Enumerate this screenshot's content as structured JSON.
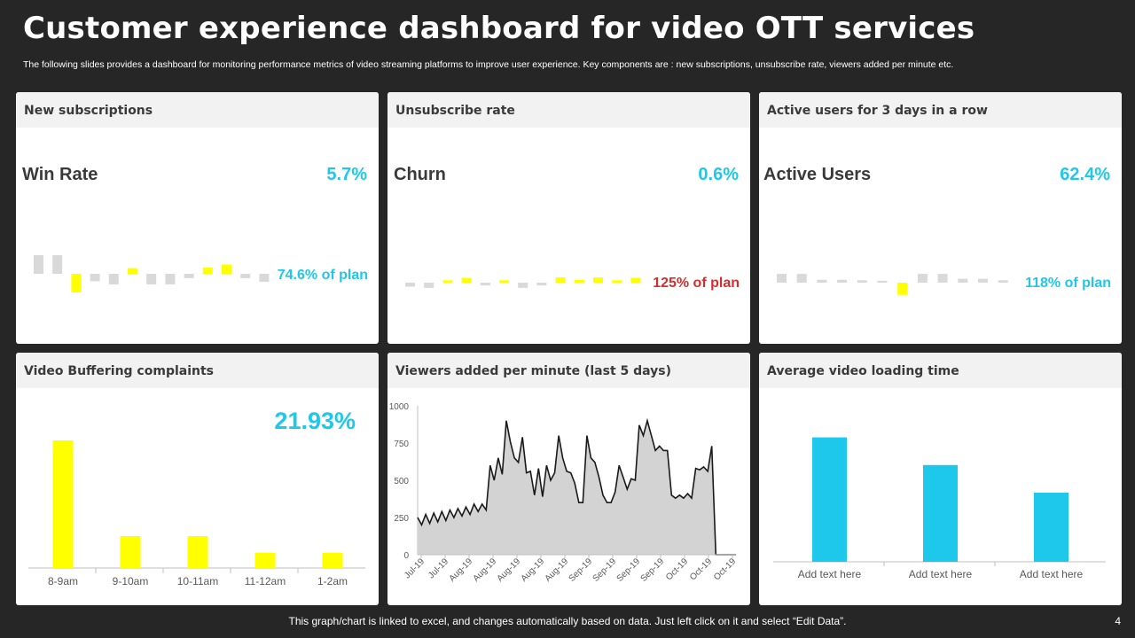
{
  "header": {
    "title": "Customer experience dashboard for video OTT services",
    "subtitle": "The following slides provides a dashboard for monitoring performance metrics of video streaming platforms to improve user experience. Key components are : new subscriptions, unsubscribe rate, viewers added per minute etc."
  },
  "cards": {
    "new_subscriptions": {
      "title": "New subscriptions",
      "kpi_label": "Win Rate",
      "kpi_value": "5.7%",
      "plan_text": "74.6% of plan",
      "plan_color": "#1ec8ea"
    },
    "unsubscribe_rate": {
      "title": "Unsubscribe rate",
      "kpi_label": "Churn",
      "kpi_value": "0.6%",
      "plan_text": "125% of plan",
      "plan_color": "#d32f2f"
    },
    "active_users": {
      "title": "Active users for 3 days in a row",
      "kpi_label": "Active Users",
      "kpi_value": "62.4%",
      "plan_text": "118% of plan",
      "plan_color": "#1ec8ea"
    },
    "buffering": {
      "title": "Video Buffering complaints",
      "big_value": "21.93%"
    },
    "viewers": {
      "title": "Viewers added per minute (last 5 days)"
    },
    "loading": {
      "title": "Average video loading time"
    }
  },
  "colors": {
    "accent": "#1ec8ea",
    "yellow": "#ffff00",
    "gray_bar": "#d9d9d9",
    "red": "#d32f2f",
    "area_fill": "#d3d3d3"
  },
  "chart_data": [
    {
      "id": "win_rate_spark",
      "type": "bar",
      "title": "Win Rate",
      "values": [
        3,
        3,
        -3,
        -1.2,
        -1.7,
        0.9,
        -1.7,
        -1.7,
        -0.7,
        1,
        1.5,
        -0.7,
        -1.3
      ],
      "colors": [
        "gray",
        "gray",
        "yellow",
        "gray",
        "gray",
        "yellow",
        "gray",
        "gray",
        "gray",
        "yellow",
        "yellow",
        "gray",
        "gray"
      ]
    },
    {
      "id": "churn_spark",
      "type": "bar",
      "title": "Churn",
      "values": [
        -1,
        -1.3,
        0.6,
        1.2,
        -0.7,
        0.6,
        -1.3,
        -0.7,
        1.3,
        0.7,
        1.3,
        0.6,
        1.2
      ],
      "colors": [
        "gray",
        "gray",
        "yellow",
        "yellow",
        "gray",
        "yellow",
        "gray",
        "gray",
        "yellow",
        "yellow",
        "yellow",
        "yellow",
        "yellow"
      ]
    },
    {
      "id": "active_users_spark",
      "type": "bar",
      "title": "Active Users",
      "values": [
        1.8,
        1.8,
        0.6,
        0.6,
        0.5,
        0.4,
        -2.5,
        1.8,
        1.8,
        0.8,
        0.8,
        0.5
      ],
      "colors": [
        "gray",
        "gray",
        "gray",
        "gray",
        "gray",
        "gray",
        "yellow",
        "gray",
        "gray",
        "gray",
        "gray",
        "gray"
      ]
    },
    {
      "id": "buffering_complaints",
      "type": "bar",
      "title": "Video Buffering complaints",
      "categories": [
        "8-9am",
        "9-10am",
        "10-11am",
        "11-12am",
        "1-2am"
      ],
      "values": [
        100,
        25,
        25,
        12,
        12
      ],
      "ylim": [
        0,
        110
      ]
    },
    {
      "id": "viewers_per_minute",
      "type": "area",
      "title": "Viewers added per minute (last 5 days)",
      "yticks": [
        0,
        250,
        500,
        750,
        1000
      ],
      "ylim": [
        0,
        1000
      ],
      "xticks": [
        "Jul-19",
        "Jul-19",
        "Aug-19",
        "Aug-19",
        "Aug-19",
        "Aug-19",
        "Aug-19",
        "Sep-19",
        "Sep-19",
        "Sep-19",
        "Sep-19",
        "Oct-19",
        "Oct-19",
        "Oct-19"
      ],
      "values": [
        250,
        200,
        270,
        210,
        280,
        220,
        290,
        230,
        300,
        250,
        310,
        260,
        320,
        270,
        340,
        290,
        340,
        300,
        600,
        500,
        650,
        540,
        900,
        760,
        650,
        620,
        790,
        550,
        560,
        400,
        580,
        390,
        600,
        500,
        550,
        800,
        650,
        560,
        550,
        480,
        350,
        350,
        800,
        650,
        620,
        520,
        400,
        350,
        350,
        420,
        600,
        520,
        440,
        510,
        500,
        870,
        800,
        900,
        800,
        700,
        730,
        700,
        700,
        400,
        380,
        400,
        380,
        410,
        380,
        580,
        570,
        590,
        560,
        730,
        0,
        0,
        0,
        0,
        0,
        0
      ]
    },
    {
      "id": "avg_loading_time",
      "type": "bar",
      "title": "Average video loading time",
      "categories": [
        "Add text here",
        "Add text here",
        "Add text here"
      ],
      "values": [
        90,
        70,
        50
      ],
      "ylim": [
        0,
        100
      ]
    }
  ],
  "footer": {
    "note": "This graph/chart is linked to excel,  and changes automatically based on data. Just left click on it and select “Edit Data”.",
    "page_number": "4"
  }
}
